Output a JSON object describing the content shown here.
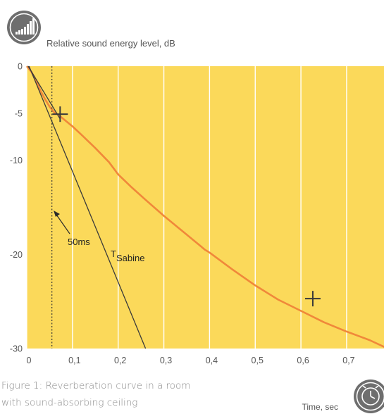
{
  "caption": "Figure 1: Reverberation curve in a room with sound-absorbing ceiling",
  "icons": {
    "sound_level": "sound-level-bars-icon",
    "time": "clock-icon"
  },
  "colors": {
    "plot_background": "#fbd95a",
    "grid": "#ffffff",
    "curve": "#f0883a",
    "reference_lines": "#3a3a3a",
    "icon_fill": "#6e6e6e",
    "label_text": "#555555"
  },
  "chart_data": {
    "type": "line",
    "ylabel": "Relative sound energy level, dB",
    "xlabel": "Time, sec",
    "xlim": [
      0,
      0.79
    ],
    "ylim": [
      -30,
      0
    ],
    "x_ticks": [
      "0",
      "0,1",
      "0,2",
      "0,3",
      "0,4",
      "0,5",
      "0,6",
      "0,7"
    ],
    "x_tick_values": [
      0,
      0.1,
      0.2,
      0.3,
      0.4,
      0.5,
      0.6,
      0.7
    ],
    "y_ticks": [
      "0",
      "-5",
      "-10",
      "-20",
      "-30"
    ],
    "y_tick_values": [
      0,
      -5,
      -10,
      -20,
      -30
    ],
    "grid": "vertical",
    "series": [
      {
        "x": [
          0,
          0.01,
          0.02,
          0.03,
          0.04,
          0.05,
          0.06,
          0.07,
          0.08,
          0.1,
          0.12,
          0.15,
          0.18,
          0.2,
          0.23,
          0.26,
          0.3,
          0.35,
          0.38,
          0.39,
          0.4,
          0.45,
          0.5,
          0.55,
          0.6,
          0.65,
          0.7,
          0.75,
          0.79
        ],
        "y": [
          0,
          -0.6,
          -1.5,
          -2.6,
          -3.5,
          -4.3,
          -4.9,
          -5.2,
          -5.6,
          -6.4,
          -7.3,
          -8.7,
          -10.2,
          -11.5,
          -12.9,
          -14.2,
          -15.9,
          -17.9,
          -19.1,
          -19.5,
          -19.8,
          -21.6,
          -23.3,
          -24.8,
          -26.0,
          -27.2,
          -28.2,
          -29.1,
          -30.0
        ]
      }
    ],
    "reference_lines": [
      {
        "name": "TSabine",
        "x": [
          0.005,
          0.26
        ],
        "y": [
          0,
          -30
        ]
      },
      {
        "x": [
          0.003,
          0.073
        ],
        "y": [
          0,
          -5.6
        ]
      }
    ],
    "vline": {
      "x": 0.055,
      "style": "dotted"
    },
    "markers": [
      {
        "x": 0.073,
        "y": -5.1
      },
      {
        "x": 0.626,
        "y": -24.7
      }
    ],
    "annotations": [
      {
        "text": "50ms",
        "x": 0.085,
        "y": -18.3
      },
      {
        "text": "T",
        "sub": "Sabine",
        "x": 0.18,
        "y": -20.0
      }
    ]
  }
}
